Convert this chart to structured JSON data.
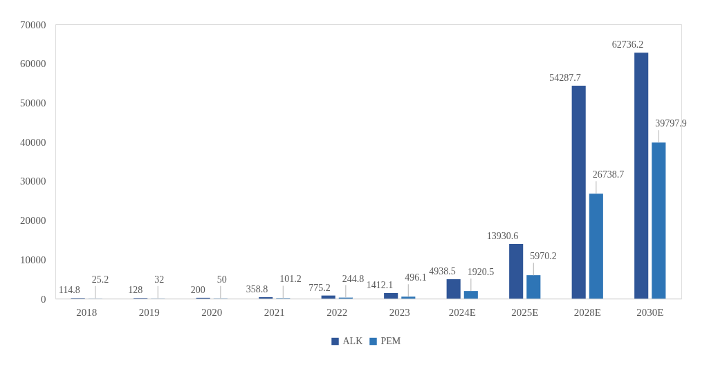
{
  "chart_data": {
    "type": "bar",
    "categories": [
      "2018",
      "2019",
      "2020",
      "2021",
      "2022",
      "2023",
      "2024E",
      "2025E",
      "2028E",
      "2030E"
    ],
    "series": [
      {
        "name": "ALK",
        "color": "#2f5597",
        "values": [
          114.8,
          128,
          200,
          358.8,
          775.2,
          1412.1,
          4938.5,
          13930.6,
          54287.7,
          62736.2
        ]
      },
      {
        "name": "PEM",
        "color": "#2e75b6",
        "values": [
          25.2,
          32,
          50,
          101.2,
          244.8,
          496.1,
          1920.5,
          5970.2,
          26738.7,
          39797.9
        ]
      }
    ],
    "ylim": [
      0,
      70000
    ],
    "yticks": [
      0,
      10000,
      20000,
      30000,
      40000,
      50000,
      60000,
      70000
    ],
    "legend": "bottom",
    "data_labels": true
  }
}
